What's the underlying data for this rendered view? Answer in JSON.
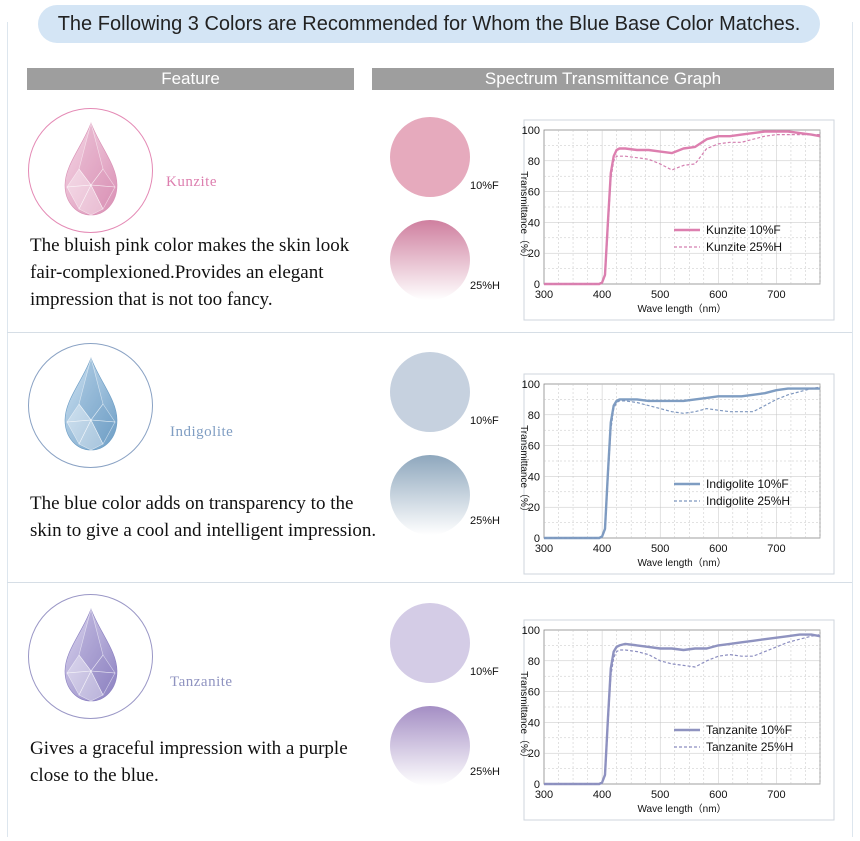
{
  "banner": "The Following 3 Colors are Recommended for Whom the Blue Base Color Matches.",
  "headers": {
    "feature": "Feature",
    "graph": "Spectrum Transmittance Graph"
  },
  "gems": [
    {
      "name": "Kunzite",
      "description": "The bluish pink color makes the skin look fair-complexioned.Provides an elegant impression that is not too fancy.",
      "swatch_f_label": "10%F",
      "swatch_h_label": "25%H",
      "colors": {
        "accent": "#dd7faf",
        "swatch_f": "#e6aabd",
        "swatch_h": "#cf7f9f",
        "dashed": "#d47fb0",
        "circle": "#e48ab5",
        "gem_light": "#f5d8e6",
        "gem_dark": "#d98fb4"
      }
    },
    {
      "name": "Indigolite",
      "description": "The blue color adds on transparency to the skin to give a cool and intelligent impression.",
      "swatch_f_label": "10%F",
      "swatch_h_label": "25%H",
      "colors": {
        "accent": "#7f9dc2",
        "swatch_f": "#c6d1df",
        "swatch_h": "#8ea7bd",
        "dashed": "#7e97bf",
        "circle": "#8aa2c4",
        "gem_light": "#cfe3f3",
        "gem_dark": "#6b9cc4"
      }
    },
    {
      "name": "Tanzanite",
      "description": "Gives a graceful impression with a purple close to the blue.",
      "swatch_f_label": "10%F",
      "swatch_h_label": "25%H",
      "colors": {
        "accent": "#8f93c0",
        "swatch_f": "#d4cce6",
        "swatch_h": "#a48ec4",
        "dashed": "#8c8ec0",
        "circle": "#9a97c6",
        "gem_light": "#dcd6ef",
        "gem_dark": "#8a7fc0"
      }
    }
  ],
  "chart_data": [
    {
      "type": "line",
      "xlabel": "Wave length（nm）",
      "ylabel": "Transmittance（%）",
      "xlim": [
        300,
        775
      ],
      "ylim": [
        0,
        100
      ],
      "xticks": [
        300,
        400,
        500,
        600,
        700
      ],
      "yticks": [
        0,
        20,
        40,
        60,
        80,
        100
      ],
      "grid": true,
      "legend": "center-right",
      "x": [
        300,
        395,
        400,
        405,
        410,
        415,
        420,
        425,
        430,
        440,
        460,
        480,
        500,
        520,
        540,
        560,
        580,
        600,
        620,
        640,
        660,
        680,
        700,
        720,
        740,
        760,
        775
      ],
      "series": [
        {
          "name": "Kunzite 10%F",
          "style": "solid",
          "color": "#dd7faf",
          "values": [
            0,
            0,
            1,
            6,
            40,
            72,
            83,
            87,
            88,
            88,
            87,
            87,
            86,
            85,
            88,
            89,
            94,
            96,
            96,
            97,
            98,
            99,
            99,
            99,
            98,
            97,
            96
          ]
        },
        {
          "name": "Kunzite 25%H",
          "style": "dashed",
          "color": "#d47fb0",
          "values": [
            0,
            0,
            1,
            5,
            35,
            68,
            80,
            83,
            83,
            83,
            82,
            81,
            78,
            74,
            77,
            78,
            88,
            91,
            92,
            92,
            94,
            96,
            97,
            97,
            97,
            97,
            97
          ]
        }
      ]
    },
    {
      "type": "line",
      "xlabel": "Wave length（nm）",
      "ylabel": "Transmittance（%）",
      "xlim": [
        300,
        775
      ],
      "ylim": [
        0,
        100
      ],
      "xticks": [
        300,
        400,
        500,
        600,
        700
      ],
      "yticks": [
        0,
        20,
        40,
        60,
        80,
        100
      ],
      "grid": true,
      "legend": "center-right",
      "x": [
        300,
        395,
        400,
        405,
        410,
        415,
        420,
        425,
        430,
        440,
        460,
        480,
        500,
        520,
        540,
        560,
        580,
        600,
        620,
        640,
        660,
        680,
        700,
        720,
        740,
        760,
        775
      ],
      "series": [
        {
          "name": "Indigolite 10%F",
          "style": "solid",
          "color": "#7f9dc2",
          "values": [
            0,
            0,
            1,
            6,
            42,
            75,
            86,
            89,
            90,
            90,
            90,
            89,
            89,
            89,
            89,
            90,
            91,
            92,
            92,
            92,
            93,
            94,
            96,
            97,
            97,
            97,
            97
          ]
        },
        {
          "name": "Indigolite 25%H",
          "style": "dashed",
          "color": "#7e97bf",
          "values": [
            0,
            0,
            1,
            5,
            38,
            70,
            84,
            88,
            89,
            89,
            88,
            86,
            84,
            82,
            81,
            82,
            84,
            83,
            82,
            82,
            82,
            86,
            90,
            93,
            95,
            97,
            98
          ]
        }
      ]
    },
    {
      "type": "line",
      "xlabel": "Wave length（nm）",
      "ylabel": "Transmittance（%）",
      "xlim": [
        300,
        775
      ],
      "ylim": [
        0,
        100
      ],
      "xticks": [
        300,
        400,
        500,
        600,
        700
      ],
      "yticks": [
        0,
        20,
        40,
        60,
        80,
        100
      ],
      "grid": true,
      "legend": "center-right",
      "x": [
        300,
        395,
        400,
        405,
        410,
        415,
        420,
        425,
        430,
        440,
        460,
        480,
        500,
        520,
        540,
        560,
        580,
        600,
        620,
        640,
        660,
        680,
        700,
        720,
        740,
        760,
        775
      ],
      "series": [
        {
          "name": "Tanzanite 10%F",
          "style": "solid",
          "color": "#8f93c0",
          "values": [
            0,
            0,
            1,
            6,
            42,
            75,
            86,
            89,
            90,
            91,
            90,
            89,
            88,
            88,
            87,
            88,
            88,
            90,
            91,
            92,
            93,
            94,
            95,
            96,
            97,
            97,
            96
          ]
        },
        {
          "name": "Tanzanite 25%H",
          "style": "dashed",
          "color": "#8c8ec0",
          "values": [
            0,
            0,
            1,
            5,
            38,
            70,
            82,
            86,
            87,
            87,
            86,
            84,
            80,
            78,
            77,
            76,
            80,
            83,
            84,
            83,
            83,
            86,
            89,
            92,
            94,
            96,
            97
          ]
        }
      ]
    }
  ]
}
